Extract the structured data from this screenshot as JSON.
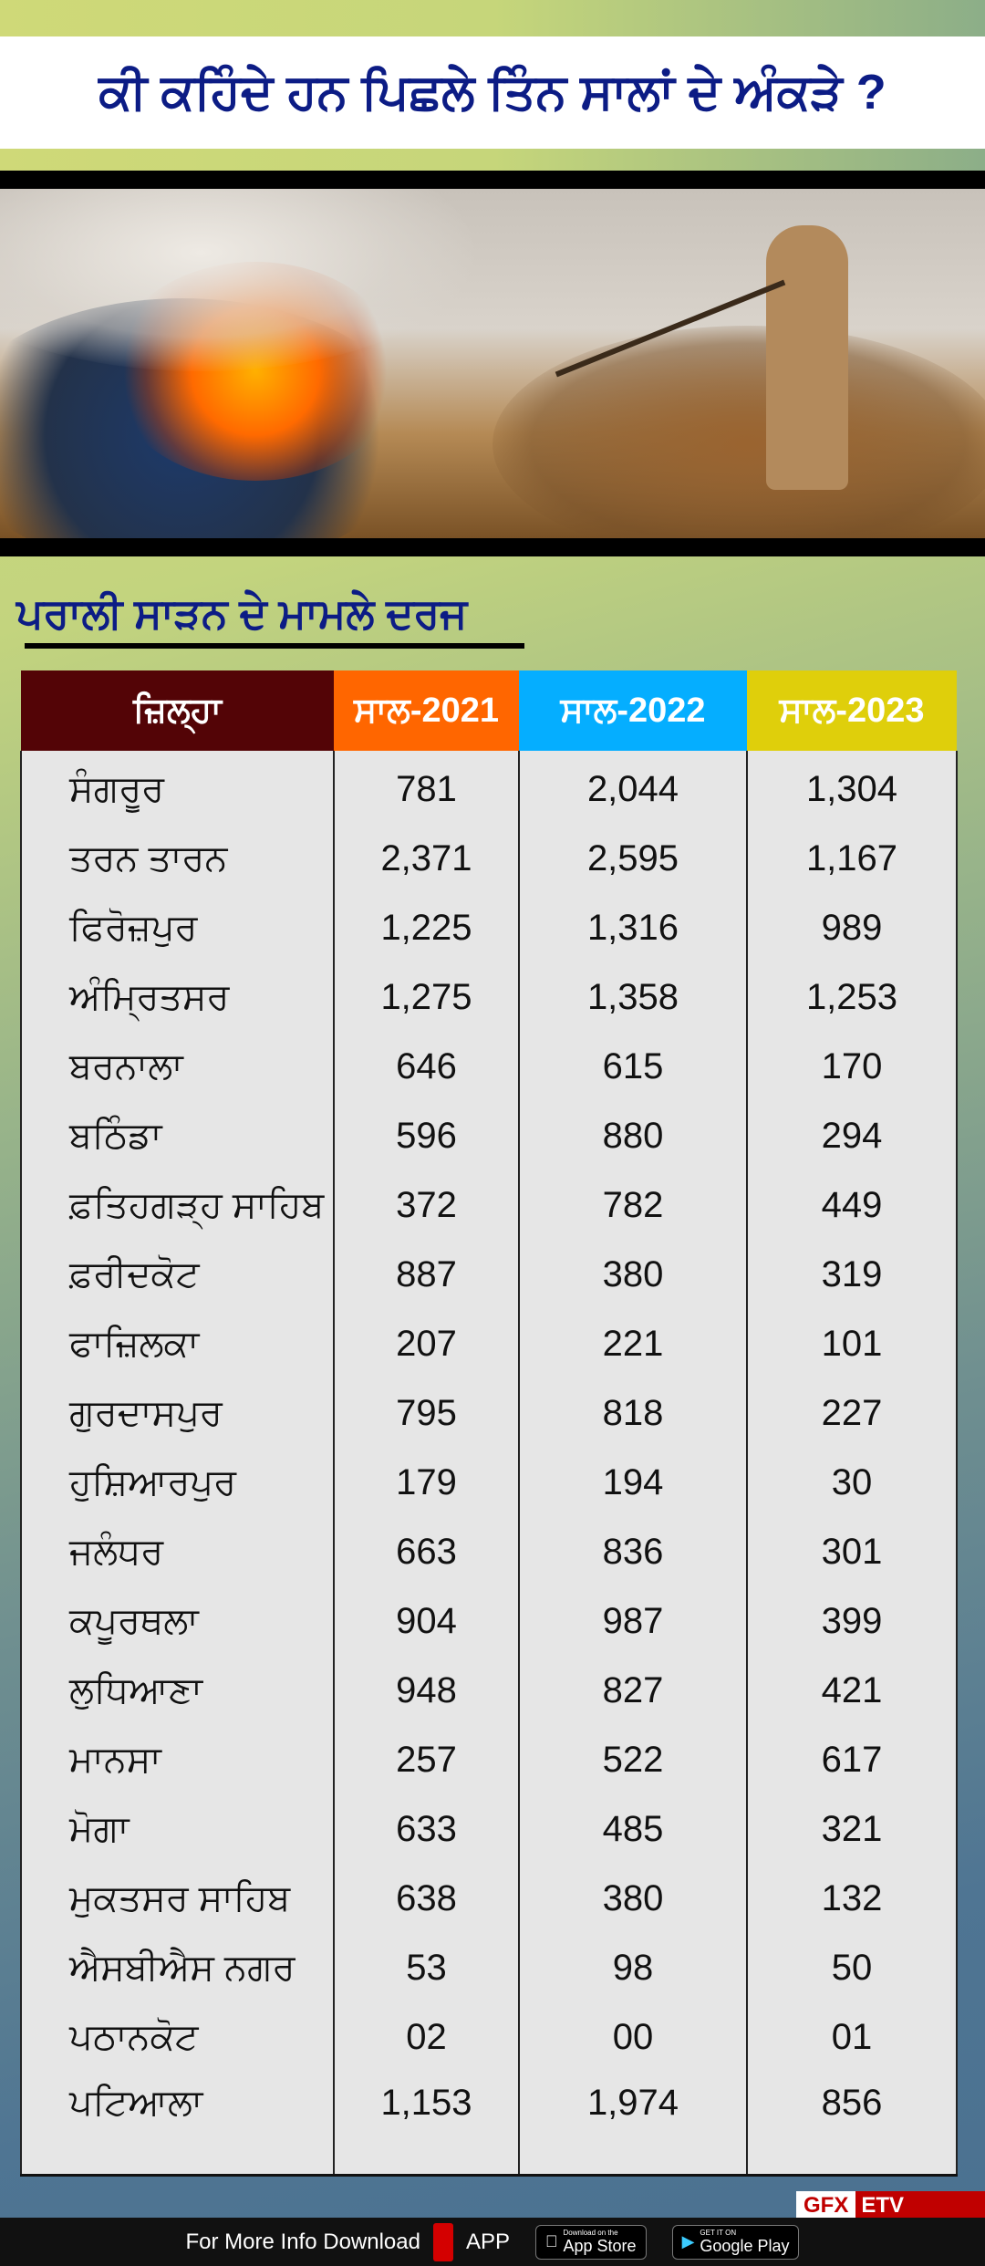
{
  "header": {
    "title": "ਕੀ ਕਹਿੰਦੇ ਹਨ ਪਿਛਲੇ ਤਿੰਨ ਸਾਲਾਂ ਦੇ ਅੰਕੜੇ ?"
  },
  "section": {
    "subtitle": "ਪਰਾਲੀ ਸਾੜਨ ਦੇ ਮਾਮਲੇ ਦਰਜ"
  },
  "table": {
    "headers": [
      {
        "label": "ਜ਼ਿਲ੍ਹਾ",
        "color": "#530406"
      },
      {
        "label": "ਸਾਲ-2021",
        "color": "#ff6600"
      },
      {
        "label": "ਸਾਲ-2022",
        "color": "#05aeff"
      },
      {
        "label": "ਸਾਲ-2023",
        "color": "#dfcf0b"
      }
    ],
    "rows": [
      [
        "ਸੰਗਰੂਰ",
        "781",
        "2,044",
        "1,304"
      ],
      [
        "ਤਰਨ ਤਾਰਨ",
        "2,371",
        "2,595",
        "1,167"
      ],
      [
        "ਫਿਰੋਜ਼ਪੁਰ",
        "1,225",
        "1,316",
        "989"
      ],
      [
        "ਅੰਮ੍ਰਿਤਸਰ",
        "1,275",
        "1,358",
        "1,253"
      ],
      [
        "ਬਰਨਾਲਾ",
        "646",
        "615",
        "170"
      ],
      [
        "ਬਠਿੰਡਾ",
        "596",
        "880",
        "294"
      ],
      [
        "ਫ਼ਤਿਹਗੜ੍ਹ ਸਾਹਿਬ",
        "372",
        "782",
        "449"
      ],
      [
        "ਫ਼ਰੀਦਕੋਟ",
        "887",
        "380",
        "319"
      ],
      [
        "ਫਾਜ਼ਿਲਕਾ",
        "207",
        "221",
        "101"
      ],
      [
        "ਗੁਰਦਾਸਪੁਰ",
        "795",
        "818",
        "227"
      ],
      [
        "ਹੁਸ਼ਿਆਰਪੁਰ",
        "179",
        "194",
        "30"
      ],
      [
        "ਜਲੰਧਰ",
        "663",
        "836",
        "301"
      ],
      [
        "ਕਪੂਰਥਲਾ",
        "904",
        "987",
        "399"
      ],
      [
        "ਲੁਧਿਆਣਾ",
        "948",
        "827",
        "421"
      ],
      [
        "ਮਾਨਸਾ",
        "257",
        "522",
        "617"
      ],
      [
        "ਮੋਗਾ",
        "633",
        "485",
        "321"
      ],
      [
        "ਮੁਕਤਸਰ ਸਾਹਿਬ",
        "638",
        "380",
        "132"
      ],
      [
        "ਐਸਬੀਐਸ ਨਗਰ",
        "53",
        "98",
        "50"
      ],
      [
        "ਪਠਾਨਕੋਟ",
        "02",
        "00",
        "01"
      ],
      [
        "ਪਟਿਆਲਾ",
        "1,153",
        "1,974",
        "856"
      ]
    ]
  },
  "badge": {
    "gfx": "GFX",
    "brand": "ETV BHARAT"
  },
  "footer": {
    "text": "For More Info Download",
    "app_logo": "ETV BHARAT",
    "app": "APP",
    "appstore_small": "Download on the",
    "appstore": "App Store",
    "play_small": "GET IT ON",
    "play": "Google Play"
  }
}
